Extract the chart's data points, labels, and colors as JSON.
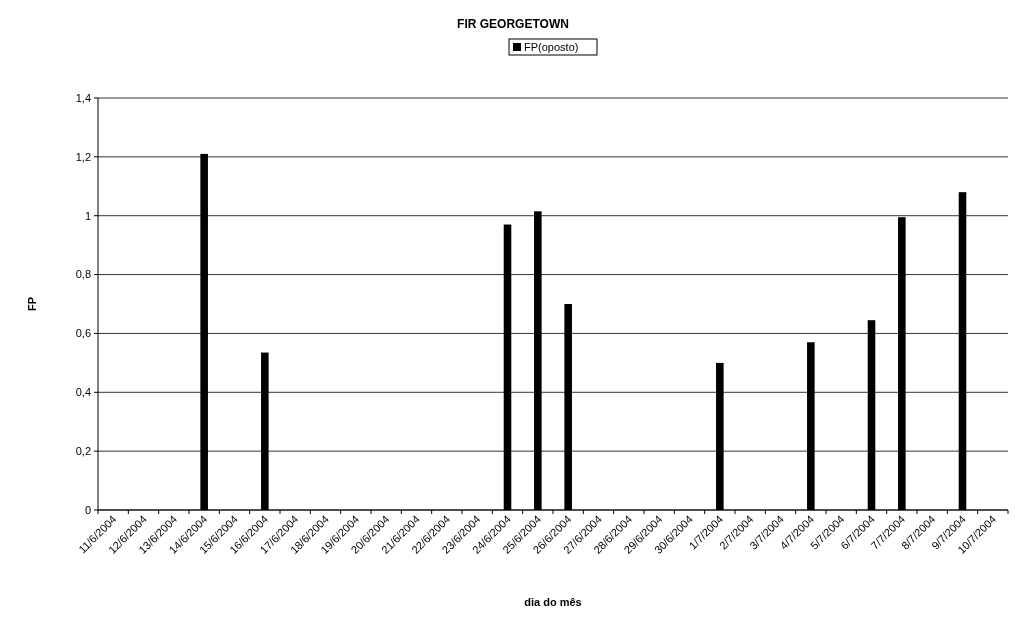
{
  "chart_data": {
    "type": "bar",
    "title": "FIR GEORGETOWN",
    "xlabel": "dia do mês",
    "ylabel": "FP",
    "categories": [
      "11/6/2004",
      "12/6/2004",
      "13/6/2004",
      "14/6/2004",
      "15/6/2004",
      "16/6/2004",
      "17/6/2004",
      "18/6/2004",
      "19/6/2004",
      "20/6/2004",
      "21/6/2004",
      "22/6/2004",
      "23/6/2004",
      "24/6/2004",
      "25/6/2004",
      "26/6/2004",
      "27/6/2004",
      "28/6/2004",
      "29/6/2004",
      "30/6/2004",
      "1/7/2004",
      "2/7/2004",
      "3/7/2004",
      "4/7/2004",
      "5/7/2004",
      "6/7/2004",
      "7/7/2004",
      "8/7/2004",
      "9/7/2004",
      "10/7/2004"
    ],
    "series": [
      {
        "name": "FP(oposto)",
        "color": "#000000",
        "values": [
          0,
          0,
          0,
          1.21,
          0,
          0.535,
          0,
          0,
          0,
          0,
          0,
          0,
          0,
          0.97,
          1.015,
          0.7,
          0,
          0,
          0,
          0,
          0.5,
          0,
          0,
          0.57,
          0,
          0.645,
          0.995,
          0,
          1.08,
          0
        ]
      }
    ],
    "ylim": [
      0,
      1.4
    ],
    "yticks": [
      0,
      {
        "value": 0.2,
        "label": "0,2"
      },
      {
        "value": 0.4,
        "label": "0,4"
      },
      {
        "value": 0.6,
        "label": "0,6"
      },
      {
        "value": 0.8,
        "label": "0,8"
      },
      1,
      {
        "value": 1.2,
        "label": "1,2"
      },
      {
        "value": 1.4,
        "label": "1,4"
      }
    ],
    "grid": "y",
    "legend": "top"
  }
}
